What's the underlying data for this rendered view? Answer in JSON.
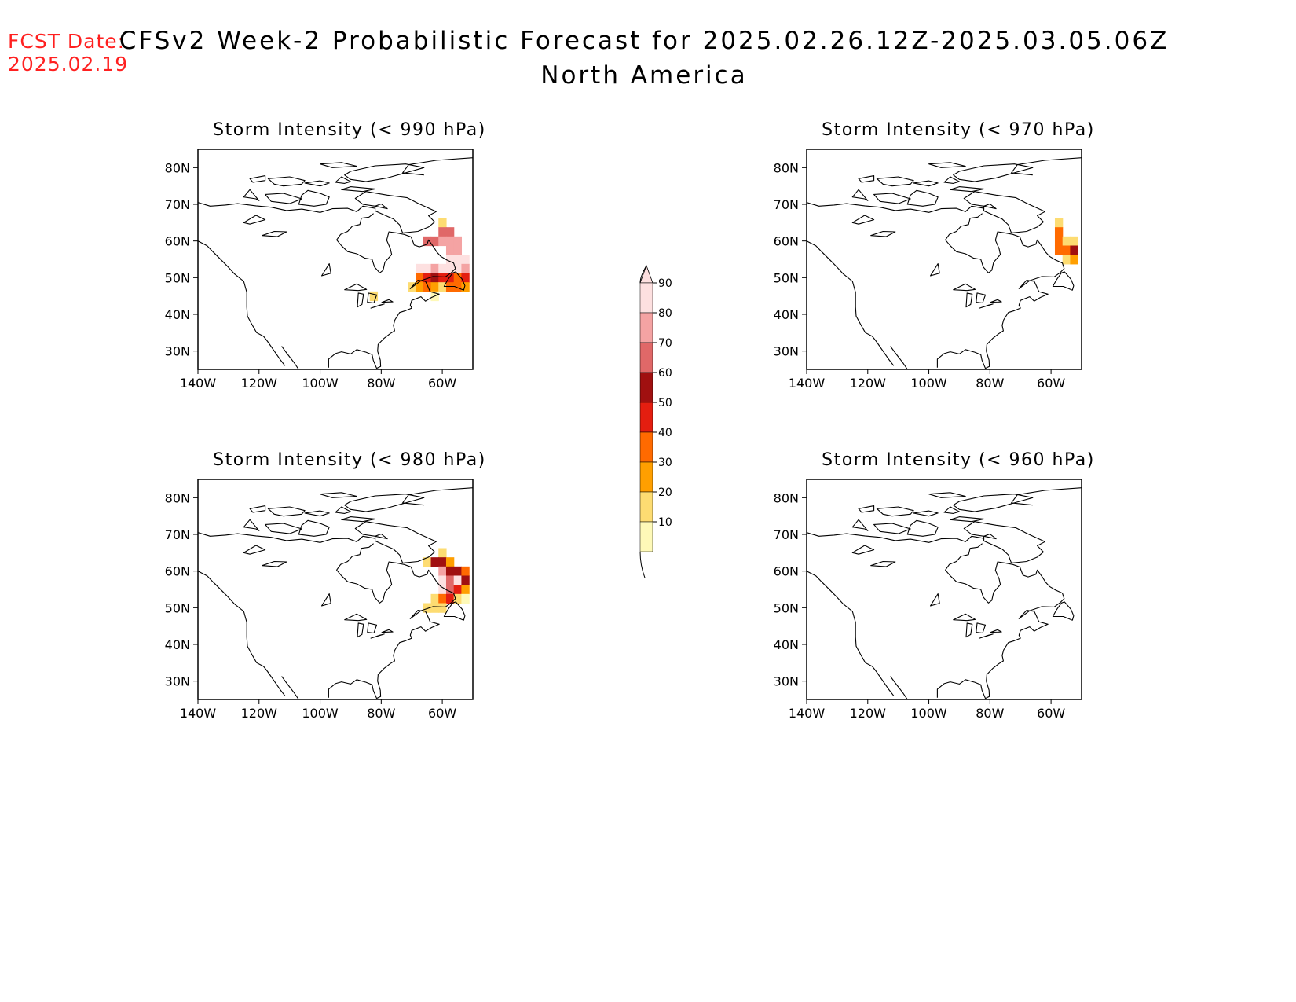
{
  "header": {
    "fcst_label": "FCST Date:",
    "fcst_date": "2025.02.19",
    "title": "CFSv2 Week-2 Probabilistic Forecast for 2025.02.26.12Z-2025.03.05.06Z",
    "subtitle": "North America"
  },
  "axes": {
    "lat_ticks": [
      "80N",
      "70N",
      "60N",
      "50N",
      "40N",
      "30N"
    ],
    "lon_ticks": [
      "140W",
      "120W",
      "100W",
      "80W",
      "60W"
    ]
  },
  "panels": [
    {
      "title": "Storm Intensity (< 990 hPa)"
    },
    {
      "title": "Storm Intensity (< 970 hPa)"
    },
    {
      "title": "Storm Intensity (< 980 hPa)"
    },
    {
      "title": "Storm Intensity (< 960 hPa)"
    }
  ],
  "colorbar": {
    "labels": [
      "90",
      "80",
      "70",
      "60",
      "50",
      "40",
      "30",
      "20",
      "10"
    ],
    "colors": [
      "#fde0e0",
      "#f4a3a3",
      "#e06868",
      "#a01010",
      "#e41e10",
      "#ff6a00",
      "#ff9f00",
      "#fddc72",
      "#fef9b8"
    ]
  },
  "chart_data": {
    "type": "heatmap",
    "units": "probability (%)",
    "lat_range": [
      25,
      85
    ],
    "lon_range": [
      -140,
      -50
    ],
    "fields": [
      {
        "panel": "Storm Intensity (< 990 hPa)",
        "cells": [
          {
            "lon": -60,
            "lat": 65,
            "p": 20
          },
          {
            "lon": -60,
            "lat": 62.5,
            "p": 75
          },
          {
            "lon": -57.5,
            "lat": 62.5,
            "p": 75
          },
          {
            "lon": -65,
            "lat": 60,
            "p": 75
          },
          {
            "lon": -62.5,
            "lat": 60,
            "p": 75
          },
          {
            "lon": -60,
            "lat": 60,
            "p": 85
          },
          {
            "lon": -57.5,
            "lat": 60,
            "p": 85
          },
          {
            "lon": -55,
            "lat": 60,
            "p": 80
          },
          {
            "lon": -57.5,
            "lat": 57.5,
            "p": 85
          },
          {
            "lon": -55,
            "lat": 57.5,
            "p": 85
          },
          {
            "lon": -57.5,
            "lat": 55,
            "p": 90
          },
          {
            "lon": -55,
            "lat": 55,
            "p": 95
          },
          {
            "lon": -52.5,
            "lat": 55,
            "p": 90
          },
          {
            "lon": -67.5,
            "lat": 52.5,
            "p": 90
          },
          {
            "lon": -65,
            "lat": 52.5,
            "p": 90
          },
          {
            "lon": -62.5,
            "lat": 52.5,
            "p": 85
          },
          {
            "lon": -60,
            "lat": 52.5,
            "p": 95
          },
          {
            "lon": -57.5,
            "lat": 52.5,
            "p": 90
          },
          {
            "lon": -55,
            "lat": 52.5,
            "p": 95
          },
          {
            "lon": -52.5,
            "lat": 52.5,
            "p": 80
          },
          {
            "lon": -67.5,
            "lat": 50,
            "p": 45
          },
          {
            "lon": -65,
            "lat": 50,
            "p": 55
          },
          {
            "lon": -62.5,
            "lat": 50,
            "p": 65
          },
          {
            "lon": -60,
            "lat": 50,
            "p": 50
          },
          {
            "lon": -57.5,
            "lat": 50,
            "p": 55
          },
          {
            "lon": -55,
            "lat": 50,
            "p": 45
          },
          {
            "lon": -52.5,
            "lat": 50,
            "p": 55
          },
          {
            "lon": -70,
            "lat": 47.5,
            "p": 20
          },
          {
            "lon": -67.5,
            "lat": 47.5,
            "p": 35
          },
          {
            "lon": -65,
            "lat": 47.5,
            "p": 45
          },
          {
            "lon": -62.5,
            "lat": 47.5,
            "p": 30
          },
          {
            "lon": -60,
            "lat": 47.5,
            "p": 25
          },
          {
            "lon": -57.5,
            "lat": 47.5,
            "p": 40
          },
          {
            "lon": -55,
            "lat": 47.5,
            "p": 45
          },
          {
            "lon": -52.5,
            "lat": 47.5,
            "p": 35
          },
          {
            "lon": -62.5,
            "lat": 45,
            "p": 15
          },
          {
            "lon": -82.5,
            "lat": 45,
            "p": 20
          }
        ]
      },
      {
        "panel": "Storm Intensity (< 970 hPa)",
        "cells": [
          {
            "lon": -57.5,
            "lat": 65,
            "p": 20
          },
          {
            "lon": -57.5,
            "lat": 62.5,
            "p": 45
          },
          {
            "lon": -57.5,
            "lat": 60,
            "p": 40
          },
          {
            "lon": -55,
            "lat": 60,
            "p": 20
          },
          {
            "lon": -52.5,
            "lat": 60,
            "p": 25
          },
          {
            "lon": -57.5,
            "lat": 57.5,
            "p": 45
          },
          {
            "lon": -55,
            "lat": 57.5,
            "p": 40
          },
          {
            "lon": -52.5,
            "lat": 57.5,
            "p": 65
          },
          {
            "lon": -55,
            "lat": 55,
            "p": 25
          },
          {
            "lon": -52.5,
            "lat": 55,
            "p": 30
          }
        ]
      },
      {
        "panel": "Storm Intensity (< 980 hPa)",
        "cells": [
          {
            "lon": -60,
            "lat": 65,
            "p": 20
          },
          {
            "lon": -65,
            "lat": 62.5,
            "p": 20
          },
          {
            "lon": -62.5,
            "lat": 62.5,
            "p": 65
          },
          {
            "lon": -60,
            "lat": 62.5,
            "p": 65
          },
          {
            "lon": -57.5,
            "lat": 62.5,
            "p": 35
          },
          {
            "lon": -60,
            "lat": 60,
            "p": 85
          },
          {
            "lon": -57.5,
            "lat": 60,
            "p": 60
          },
          {
            "lon": -55,
            "lat": 60,
            "p": 65
          },
          {
            "lon": -52.5,
            "lat": 60,
            "p": 40
          },
          {
            "lon": -60,
            "lat": 57.5,
            "p": 90
          },
          {
            "lon": -57.5,
            "lat": 57.5,
            "p": 75
          },
          {
            "lon": -55,
            "lat": 57.5,
            "p": 95
          },
          {
            "lon": -52.5,
            "lat": 57.5,
            "p": 65
          },
          {
            "lon": -60,
            "lat": 55,
            "p": 90
          },
          {
            "lon": -57.5,
            "lat": 55,
            "p": 75
          },
          {
            "lon": -55,
            "lat": 55,
            "p": 50
          },
          {
            "lon": -52.5,
            "lat": 55,
            "p": 35
          },
          {
            "lon": -62.5,
            "lat": 52.5,
            "p": 20
          },
          {
            "lon": -60,
            "lat": 52.5,
            "p": 45
          },
          {
            "lon": -57.5,
            "lat": 52.5,
            "p": 50
          },
          {
            "lon": -55,
            "lat": 52.5,
            "p": 25
          },
          {
            "lon": -52.5,
            "lat": 52.5,
            "p": 15
          },
          {
            "lon": -65,
            "lat": 50,
            "p": 20
          },
          {
            "lon": -62.5,
            "lat": 50,
            "p": 25
          },
          {
            "lon": -60,
            "lat": 50,
            "p": 20
          }
        ]
      },
      {
        "panel": "Storm Intensity (< 960 hPa)",
        "cells": []
      }
    ]
  }
}
